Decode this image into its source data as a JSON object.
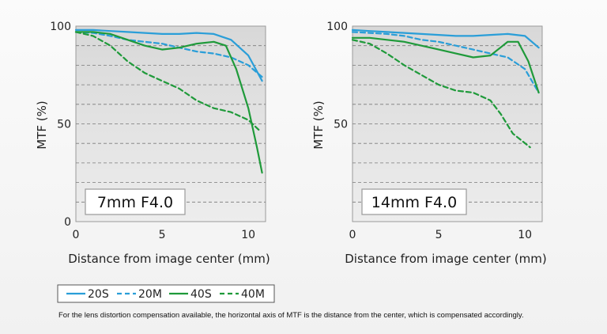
{
  "chart_data": [
    {
      "type": "line",
      "panel_label": "7mm F4.0",
      "xlabel": "Distance from image center (mm)",
      "ylabel": "MTF (%)",
      "xlim": [
        0,
        11
      ],
      "ylim": [
        0,
        100
      ],
      "xticks": [
        "0",
        "5",
        "10"
      ],
      "yticks": [
        "0",
        "50",
        "100"
      ],
      "grid": "horizontal dashed every 10%",
      "series": [
        {
          "name": "20S",
          "color": "#2a9ed8",
          "style": "solid",
          "x": [
            0,
            1,
            2,
            3,
            4,
            5,
            6,
            7,
            8,
            9,
            10,
            10.8
          ],
          "y": [
            98,
            98,
            97.5,
            97,
            96.5,
            96,
            96,
            96.5,
            96,
            93,
            85,
            72
          ]
        },
        {
          "name": "20M",
          "color": "#2a9ed8",
          "style": "dashed",
          "x": [
            0,
            1,
            2,
            3,
            4,
            5,
            6,
            7,
            8,
            9,
            10,
            10.8
          ],
          "y": [
            97,
            96.5,
            95,
            93,
            92,
            91,
            89,
            87,
            86,
            84,
            80,
            74
          ]
        },
        {
          "name": "40S",
          "color": "#1f9a3a",
          "style": "solid",
          "x": [
            0,
            1,
            2,
            3,
            4,
            5,
            6,
            7,
            8,
            8.7,
            9.3,
            10,
            10.5,
            10.8
          ],
          "y": [
            97,
            97,
            96,
            93,
            90,
            88,
            89,
            91,
            92,
            90,
            78,
            58,
            38,
            25
          ]
        },
        {
          "name": "40M",
          "color": "#1f9a3a",
          "style": "dashed",
          "x": [
            0,
            1,
            2,
            3,
            4,
            5,
            6,
            7,
            8,
            9,
            10,
            10.6
          ],
          "y": [
            97,
            95,
            90,
            82,
            76,
            72,
            68,
            62,
            58,
            56,
            52,
            47
          ]
        }
      ]
    },
    {
      "type": "line",
      "panel_label": "14mm F4.0",
      "xlabel": "Distance from image center (mm)",
      "ylabel": "MTF (%)",
      "xlim": [
        0,
        11
      ],
      "ylim": [
        0,
        100
      ],
      "xticks": [
        "0",
        "5",
        "10"
      ],
      "yticks": [
        "50",
        "100"
      ],
      "grid": "horizontal dashed every 10%",
      "series": [
        {
          "name": "20S",
          "color": "#2a9ed8",
          "style": "solid",
          "x": [
            0,
            1,
            2,
            3,
            4,
            5,
            6,
            7,
            8,
            9,
            10,
            10.8
          ],
          "y": [
            98,
            97.5,
            97,
            96.5,
            96,
            95.5,
            95,
            95,
            95.5,
            96,
            95,
            89
          ]
        },
        {
          "name": "20M",
          "color": "#2a9ed8",
          "style": "dashed",
          "x": [
            0,
            1,
            2,
            3,
            4,
            5,
            6,
            7,
            8,
            9,
            10,
            10.8
          ],
          "y": [
            97,
            96.5,
            96,
            95,
            93,
            92,
            90,
            88,
            86,
            84,
            78,
            66
          ]
        },
        {
          "name": "40S",
          "color": "#1f9a3a",
          "style": "solid",
          "x": [
            0,
            1,
            2,
            3,
            4,
            5,
            6,
            7,
            8,
            9,
            9.6,
            10.2,
            10.8
          ],
          "y": [
            94,
            94,
            93,
            92,
            90,
            88,
            86,
            84,
            85,
            92,
            92,
            82,
            66
          ]
        },
        {
          "name": "40M",
          "color": "#1f9a3a",
          "style": "dashed",
          "x": [
            0,
            1,
            2,
            3,
            4,
            5,
            6,
            7,
            8,
            8.6,
            9.3,
            10.3
          ],
          "y": [
            93,
            91,
            86,
            80,
            75,
            70,
            67,
            66,
            62,
            55,
            45,
            38
          ]
        }
      ]
    }
  ],
  "legend": [
    {
      "name": "20S",
      "color": "#2a9ed8",
      "style": "solid"
    },
    {
      "name": "20M",
      "color": "#2a9ed8",
      "style": "dashed"
    },
    {
      "name": "40S",
      "color": "#1f9a3a",
      "style": "solid"
    },
    {
      "name": "40M",
      "color": "#1f9a3a",
      "style": "dashed"
    }
  ],
  "footnote": "For the lens distortion compensation available, the horizontal axis of MTF is the distance from the center, which is compensated accordingly."
}
